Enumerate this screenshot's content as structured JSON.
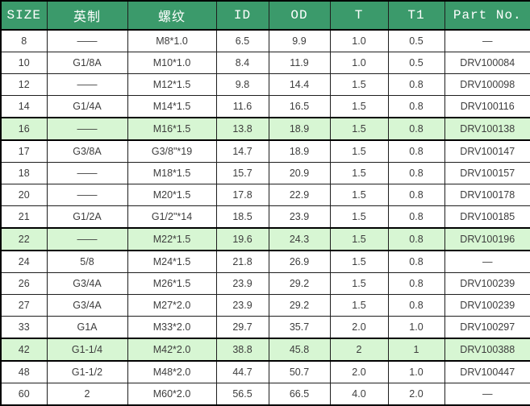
{
  "table": {
    "colors": {
      "header_bg": "#3b9a6b",
      "header_text": "#ffffff",
      "highlight_bg": "#d7f6d3",
      "row_bg": "#ffffff",
      "border": "#1e1e1e",
      "text": "#3d3d3d"
    },
    "columns": [
      {
        "label": "SIZE"
      },
      {
        "label": "英制"
      },
      {
        "label": "螺纹"
      },
      {
        "label": "ID"
      },
      {
        "label": "OD"
      },
      {
        "label": "T"
      },
      {
        "label": "T1"
      },
      {
        "label": "Part No."
      }
    ],
    "rows": [
      {
        "highlighted": false,
        "cells": [
          "8",
          "——",
          "M8*1.0",
          "6.5",
          "9.9",
          "1.0",
          "0.5",
          "—"
        ]
      },
      {
        "highlighted": false,
        "cells": [
          "10",
          "G1/8A",
          "M10*1.0",
          "8.4",
          "11.9",
          "1.0",
          "0.5",
          "DRV100084"
        ]
      },
      {
        "highlighted": false,
        "cells": [
          "12",
          "——",
          "M12*1.5",
          "9.8",
          "14.4",
          "1.5",
          "0.8",
          "DRV100098"
        ]
      },
      {
        "highlighted": false,
        "cells": [
          "14",
          "G1/4A",
          "M14*1.5",
          "11.6",
          "16.5",
          "1.5",
          "0.8",
          "DRV100116"
        ]
      },
      {
        "highlighted": true,
        "cells": [
          "16",
          "——",
          "M16*1.5",
          "13.8",
          "18.9",
          "1.5",
          "0.8",
          "DRV100138"
        ]
      },
      {
        "highlighted": false,
        "cells": [
          "17",
          "G3/8A",
          "G3/8\"*19",
          "14.7",
          "18.9",
          "1.5",
          "0.8",
          "DRV100147"
        ]
      },
      {
        "highlighted": false,
        "cells": [
          "18",
          "——",
          "M18*1.5",
          "15.7",
          "20.9",
          "1.5",
          "0.8",
          "DRV100157"
        ]
      },
      {
        "highlighted": false,
        "cells": [
          "20",
          "——",
          "M20*1.5",
          "17.8",
          "22.9",
          "1.5",
          "0.8",
          "DRV100178"
        ]
      },
      {
        "highlighted": false,
        "cells": [
          "21",
          "G1/2A",
          "G1/2\"*14",
          "18.5",
          "23.9",
          "1.5",
          "0.8",
          "DRV100185"
        ]
      },
      {
        "highlighted": true,
        "cells": [
          "22",
          "——",
          "M22*1.5",
          "19.6",
          "24.3",
          "1.5",
          "0.8",
          "DRV100196"
        ]
      },
      {
        "highlighted": false,
        "cells": [
          "24",
          "5/8",
          "M24*1.5",
          "21.8",
          "26.9",
          "1.5",
          "0.8",
          "—"
        ]
      },
      {
        "highlighted": false,
        "cells": [
          "26",
          "G3/4A",
          "M26*1.5",
          "23.9",
          "29.2",
          "1.5",
          "0.8",
          "DRV100239"
        ]
      },
      {
        "highlighted": false,
        "cells": [
          "27",
          "G3/4A",
          "M27*2.0",
          "23.9",
          "29.2",
          "1.5",
          "0.8",
          "DRV100239"
        ]
      },
      {
        "highlighted": false,
        "cells": [
          "33",
          "G1A",
          "M33*2.0",
          "29.7",
          "35.7",
          "2.0",
          "1.0",
          "DRV100297"
        ]
      },
      {
        "highlighted": true,
        "cells": [
          "42",
          "G1-1/4",
          "M42*2.0",
          "38.8",
          "45.8",
          "2",
          "1",
          "DRV100388"
        ]
      },
      {
        "highlighted": false,
        "cells": [
          "48",
          "G1-1/2",
          "M48*2.0",
          "44.7",
          "50.7",
          "2.0",
          "1.0",
          "DRV100447"
        ]
      },
      {
        "highlighted": false,
        "cells": [
          "60",
          "2",
          "M60*2.0",
          "56.5",
          "66.5",
          "4.0",
          "2.0",
          "—"
        ]
      }
    ]
  }
}
